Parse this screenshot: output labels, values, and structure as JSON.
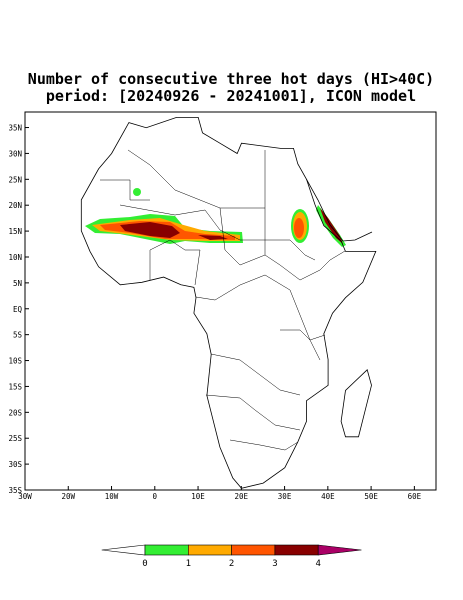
{
  "title": {
    "line1": "Number of consecutive three hot days (HI>40C)",
    "line2": "period: [20240926 - 20241001], ICON model"
  },
  "map": {
    "lonlim": [
      -30,
      65
    ],
    "latlim": [
      -35,
      38
    ],
    "lonticks": [
      {
        "value": -30,
        "label": "30W"
      },
      {
        "value": -20,
        "label": "20W"
      },
      {
        "value": -10,
        "label": "10W"
      },
      0,
      {
        "value": 10,
        "label": "10E"
      },
      {
        "value": 20,
        "label": "20E"
      },
      {
        "value": 30,
        "label": "30E"
      },
      {
        "value": 40,
        "label": "40E"
      },
      {
        "value": 50,
        "label": "50E"
      },
      {
        "value": 60,
        "label": "60E"
      }
    ],
    "latticks": [
      {
        "value": 35,
        "label": "35N"
      },
      {
        "value": 30,
        "label": "30N"
      },
      {
        "value": 25,
        "label": "25N"
      },
      {
        "value": 20,
        "label": "20N"
      },
      {
        "value": 15,
        "label": "15N"
      },
      {
        "value": 10,
        "label": "10N"
      },
      {
        "value": 5,
        "label": "5N"
      },
      {
        "value": 0,
        "label": "EQ"
      },
      {
        "value": -5,
        "label": "5S"
      },
      {
        "value": -10,
        "label": "10S"
      },
      {
        "value": -15,
        "label": "15S"
      },
      {
        "value": -20,
        "label": "20S"
      },
      {
        "value": -25,
        "label": "25S"
      },
      {
        "value": -30,
        "label": "30S"
      },
      {
        "value": -35,
        "label": "35S"
      }
    ]
  },
  "colorbar": {
    "levels": [
      0,
      1,
      2,
      3,
      4
    ],
    "colors": [
      "#ffffff",
      "#33ee33",
      "#ffaa00",
      "#ff5500",
      "#880000",
      "#aa0066"
    ]
  }
}
